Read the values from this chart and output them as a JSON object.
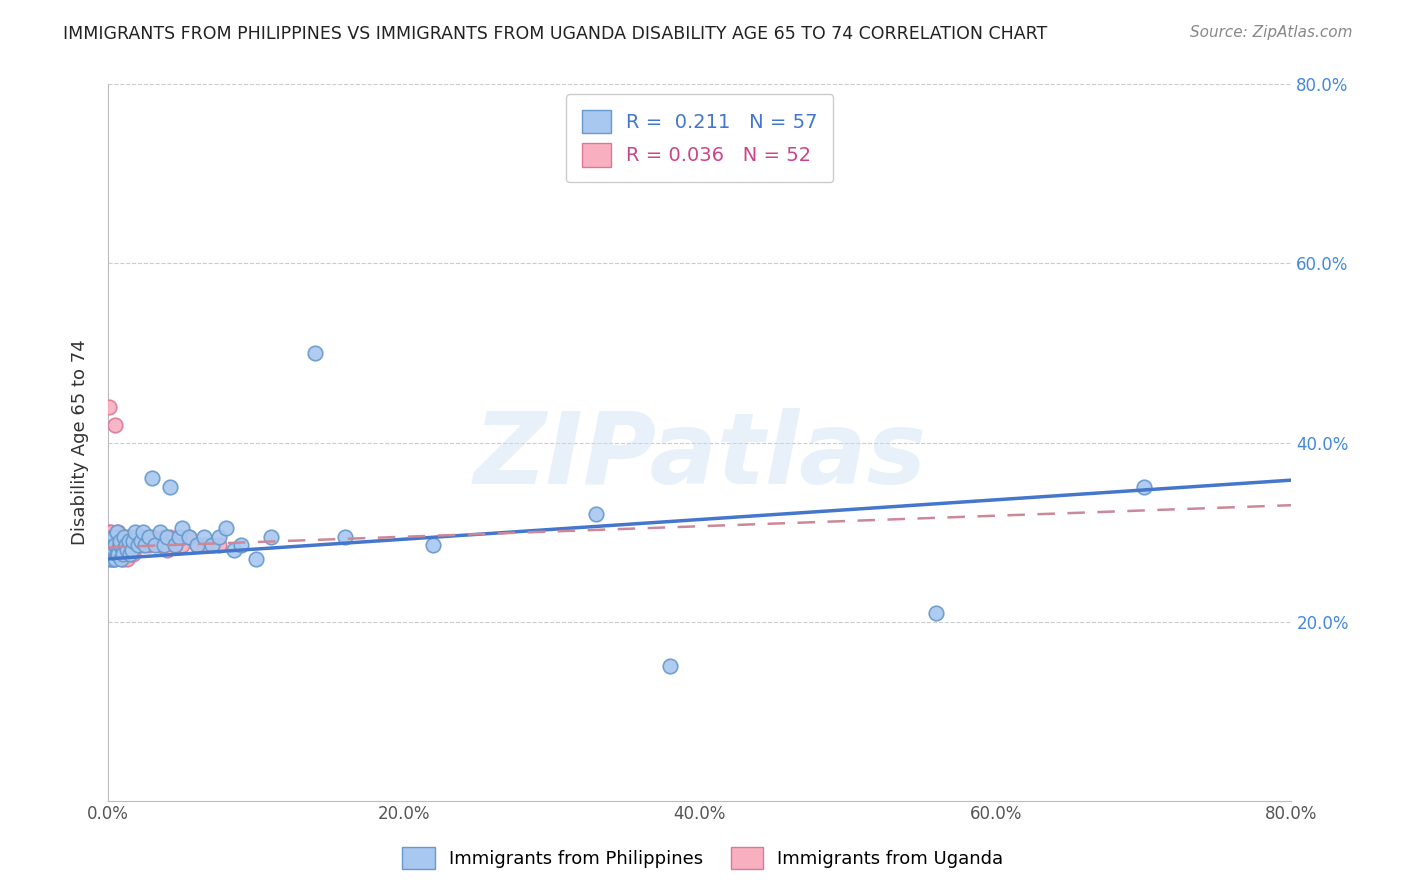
{
  "title": "IMMIGRANTS FROM PHILIPPINES VS IMMIGRANTS FROM UGANDA DISABILITY AGE 65 TO 74 CORRELATION CHART",
  "source": "Source: ZipAtlas.com",
  "ylabel": "Disability Age 65 to 74",
  "xlim": [
    0,
    0.8
  ],
  "ylim": [
    0,
    0.8
  ],
  "xticks": [
    0.0,
    0.2,
    0.4,
    0.6,
    0.8
  ],
  "yticks": [
    0.2,
    0.4,
    0.6,
    0.8
  ],
  "xtick_labels": [
    "0.0%",
    "20.0%",
    "40.0%",
    "60.0%",
    "80.0%"
  ],
  "right_ytick_labels": [
    "20.0%",
    "40.0%",
    "60.0%",
    "80.0%"
  ],
  "philippines_color": "#a8c8f0",
  "uganda_color": "#f8b0c0",
  "philippines_edge": "#6699cc",
  "uganda_edge": "#dd7799",
  "trend_philippines_color": "#4477cc",
  "trend_uganda_color": "#cc8899",
  "R_philippines": 0.211,
  "N_philippines": 57,
  "R_uganda": 0.036,
  "N_uganda": 52,
  "watermark": "ZIPatlas",
  "legend_label_philippines": "Immigrants from Philippines",
  "legend_label_uganda": "Immigrants from Uganda",
  "background_color": "#ffffff",
  "grid_color": "#cccccc",
  "philippines_x": [
    0.001,
    0.002,
    0.002,
    0.003,
    0.003,
    0.004,
    0.004,
    0.005,
    0.005,
    0.006,
    0.006,
    0.007,
    0.007,
    0.008,
    0.008,
    0.009,
    0.01,
    0.01,
    0.011,
    0.012,
    0.013,
    0.014,
    0.015,
    0.016,
    0.017,
    0.018,
    0.02,
    0.022,
    0.024,
    0.025,
    0.028,
    0.03,
    0.032,
    0.035,
    0.038,
    0.04,
    0.042,
    0.045,
    0.048,
    0.05,
    0.055,
    0.06,
    0.065,
    0.07,
    0.075,
    0.08,
    0.085,
    0.09,
    0.1,
    0.11,
    0.14,
    0.16,
    0.22,
    0.33,
    0.38,
    0.56,
    0.7
  ],
  "philippines_y": [
    0.27,
    0.285,
    0.275,
    0.29,
    0.27,
    0.28,
    0.295,
    0.27,
    0.285,
    0.275,
    0.3,
    0.28,
    0.275,
    0.285,
    0.29,
    0.27,
    0.28,
    0.275,
    0.295,
    0.285,
    0.28,
    0.29,
    0.275,
    0.28,
    0.29,
    0.3,
    0.285,
    0.29,
    0.3,
    0.285,
    0.295,
    0.36,
    0.285,
    0.3,
    0.285,
    0.295,
    0.35,
    0.285,
    0.295,
    0.305,
    0.295,
    0.285,
    0.295,
    0.285,
    0.295,
    0.305,
    0.28,
    0.285,
    0.27,
    0.295,
    0.5,
    0.295,
    0.285,
    0.32,
    0.15,
    0.21,
    0.35
  ],
  "uganda_x": [
    0.001,
    0.001,
    0.001,
    0.001,
    0.001,
    0.002,
    0.002,
    0.002,
    0.002,
    0.003,
    0.003,
    0.003,
    0.003,
    0.004,
    0.004,
    0.005,
    0.005,
    0.005,
    0.006,
    0.006,
    0.007,
    0.007,
    0.008,
    0.008,
    0.009,
    0.01,
    0.01,
    0.011,
    0.012,
    0.013,
    0.014,
    0.015,
    0.016,
    0.017,
    0.018,
    0.019,
    0.02,
    0.022,
    0.024,
    0.025,
    0.028,
    0.03,
    0.035,
    0.038,
    0.04,
    0.042,
    0.045,
    0.05,
    0.055,
    0.06,
    0.065,
    0.075
  ],
  "uganda_y": [
    0.3,
    0.285,
    0.275,
    0.44,
    0.295,
    0.285,
    0.29,
    0.275,
    0.3,
    0.27,
    0.285,
    0.28,
    0.295,
    0.27,
    0.285,
    0.275,
    0.28,
    0.42,
    0.285,
    0.295,
    0.275,
    0.3,
    0.285,
    0.295,
    0.275,
    0.285,
    0.27,
    0.28,
    0.295,
    0.27,
    0.285,
    0.295,
    0.285,
    0.275,
    0.285,
    0.295,
    0.285,
    0.295,
    0.285,
    0.295,
    0.285,
    0.295,
    0.285,
    0.295,
    0.28,
    0.295,
    0.285,
    0.285,
    0.295,
    0.285,
    0.285,
    0.285
  ],
  "trend_phil_x0": 0.0,
  "trend_phil_x1": 0.8,
  "trend_phil_y0": 0.27,
  "trend_phil_y1": 0.358,
  "trend_ug_x0": 0.0,
  "trend_ug_x1": 0.8,
  "trend_ug_y0": 0.283,
  "trend_ug_y1": 0.33
}
